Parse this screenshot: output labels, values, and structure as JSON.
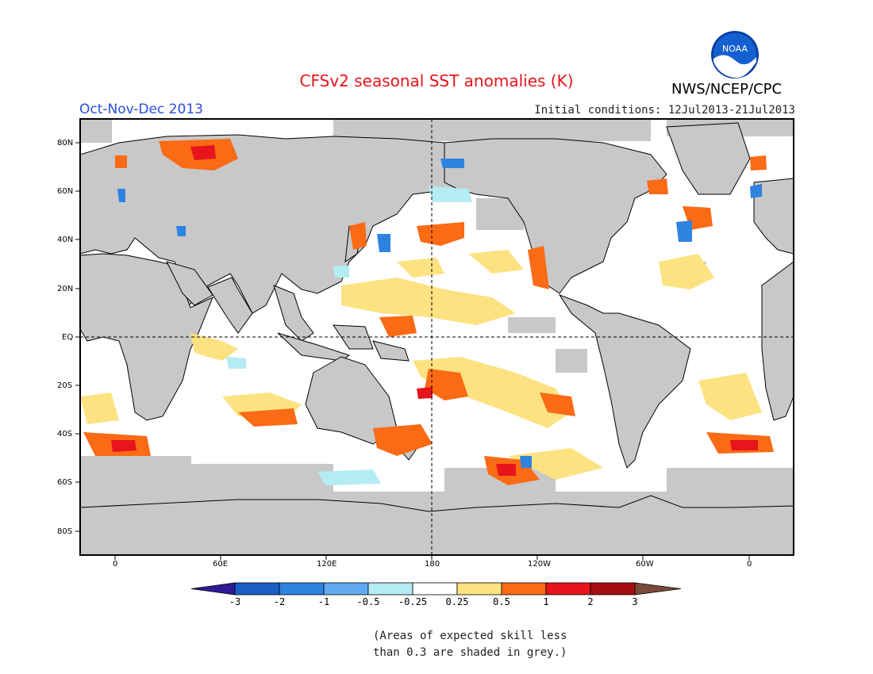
{
  "header": {
    "title": "CFSv2 seasonal SST anomalies (K)",
    "period": "Oct-Nov-Dec 2013",
    "initial_conditions": "Initial conditions: 12Jul2013-21Jul2013",
    "agency": "NWS/NCEP/CPC",
    "logo_text": "NOAA"
  },
  "map": {
    "lat_labels": [
      "80N",
      "60N",
      "40N",
      "20N",
      "EQ",
      "20S",
      "40S",
      "60S",
      "80S"
    ],
    "lon_labels": [
      "0",
      "60E",
      "120E",
      "180",
      "120W",
      "60W",
      "0"
    ],
    "land_color": "#c8c8c8",
    "ocean_color": "#ffffff"
  },
  "colorbar": {
    "labels": [
      "-3",
      "-2",
      "-1",
      "-0.5",
      "-0.25",
      "0.25",
      "0.5",
      "1",
      "2",
      "3"
    ],
    "colors": [
      "#2e1a96",
      "#1c5ec8",
      "#2e82e0",
      "#60aaf0",
      "#b4ecf4",
      "#ffffff",
      "#fde282",
      "#fb6a14",
      "#e8141c",
      "#a50e10",
      "#7a4a3a"
    ]
  },
  "note": {
    "line1": "(Areas of expected skill less",
    "line2": "than 0.3 are shaded in grey.)"
  }
}
